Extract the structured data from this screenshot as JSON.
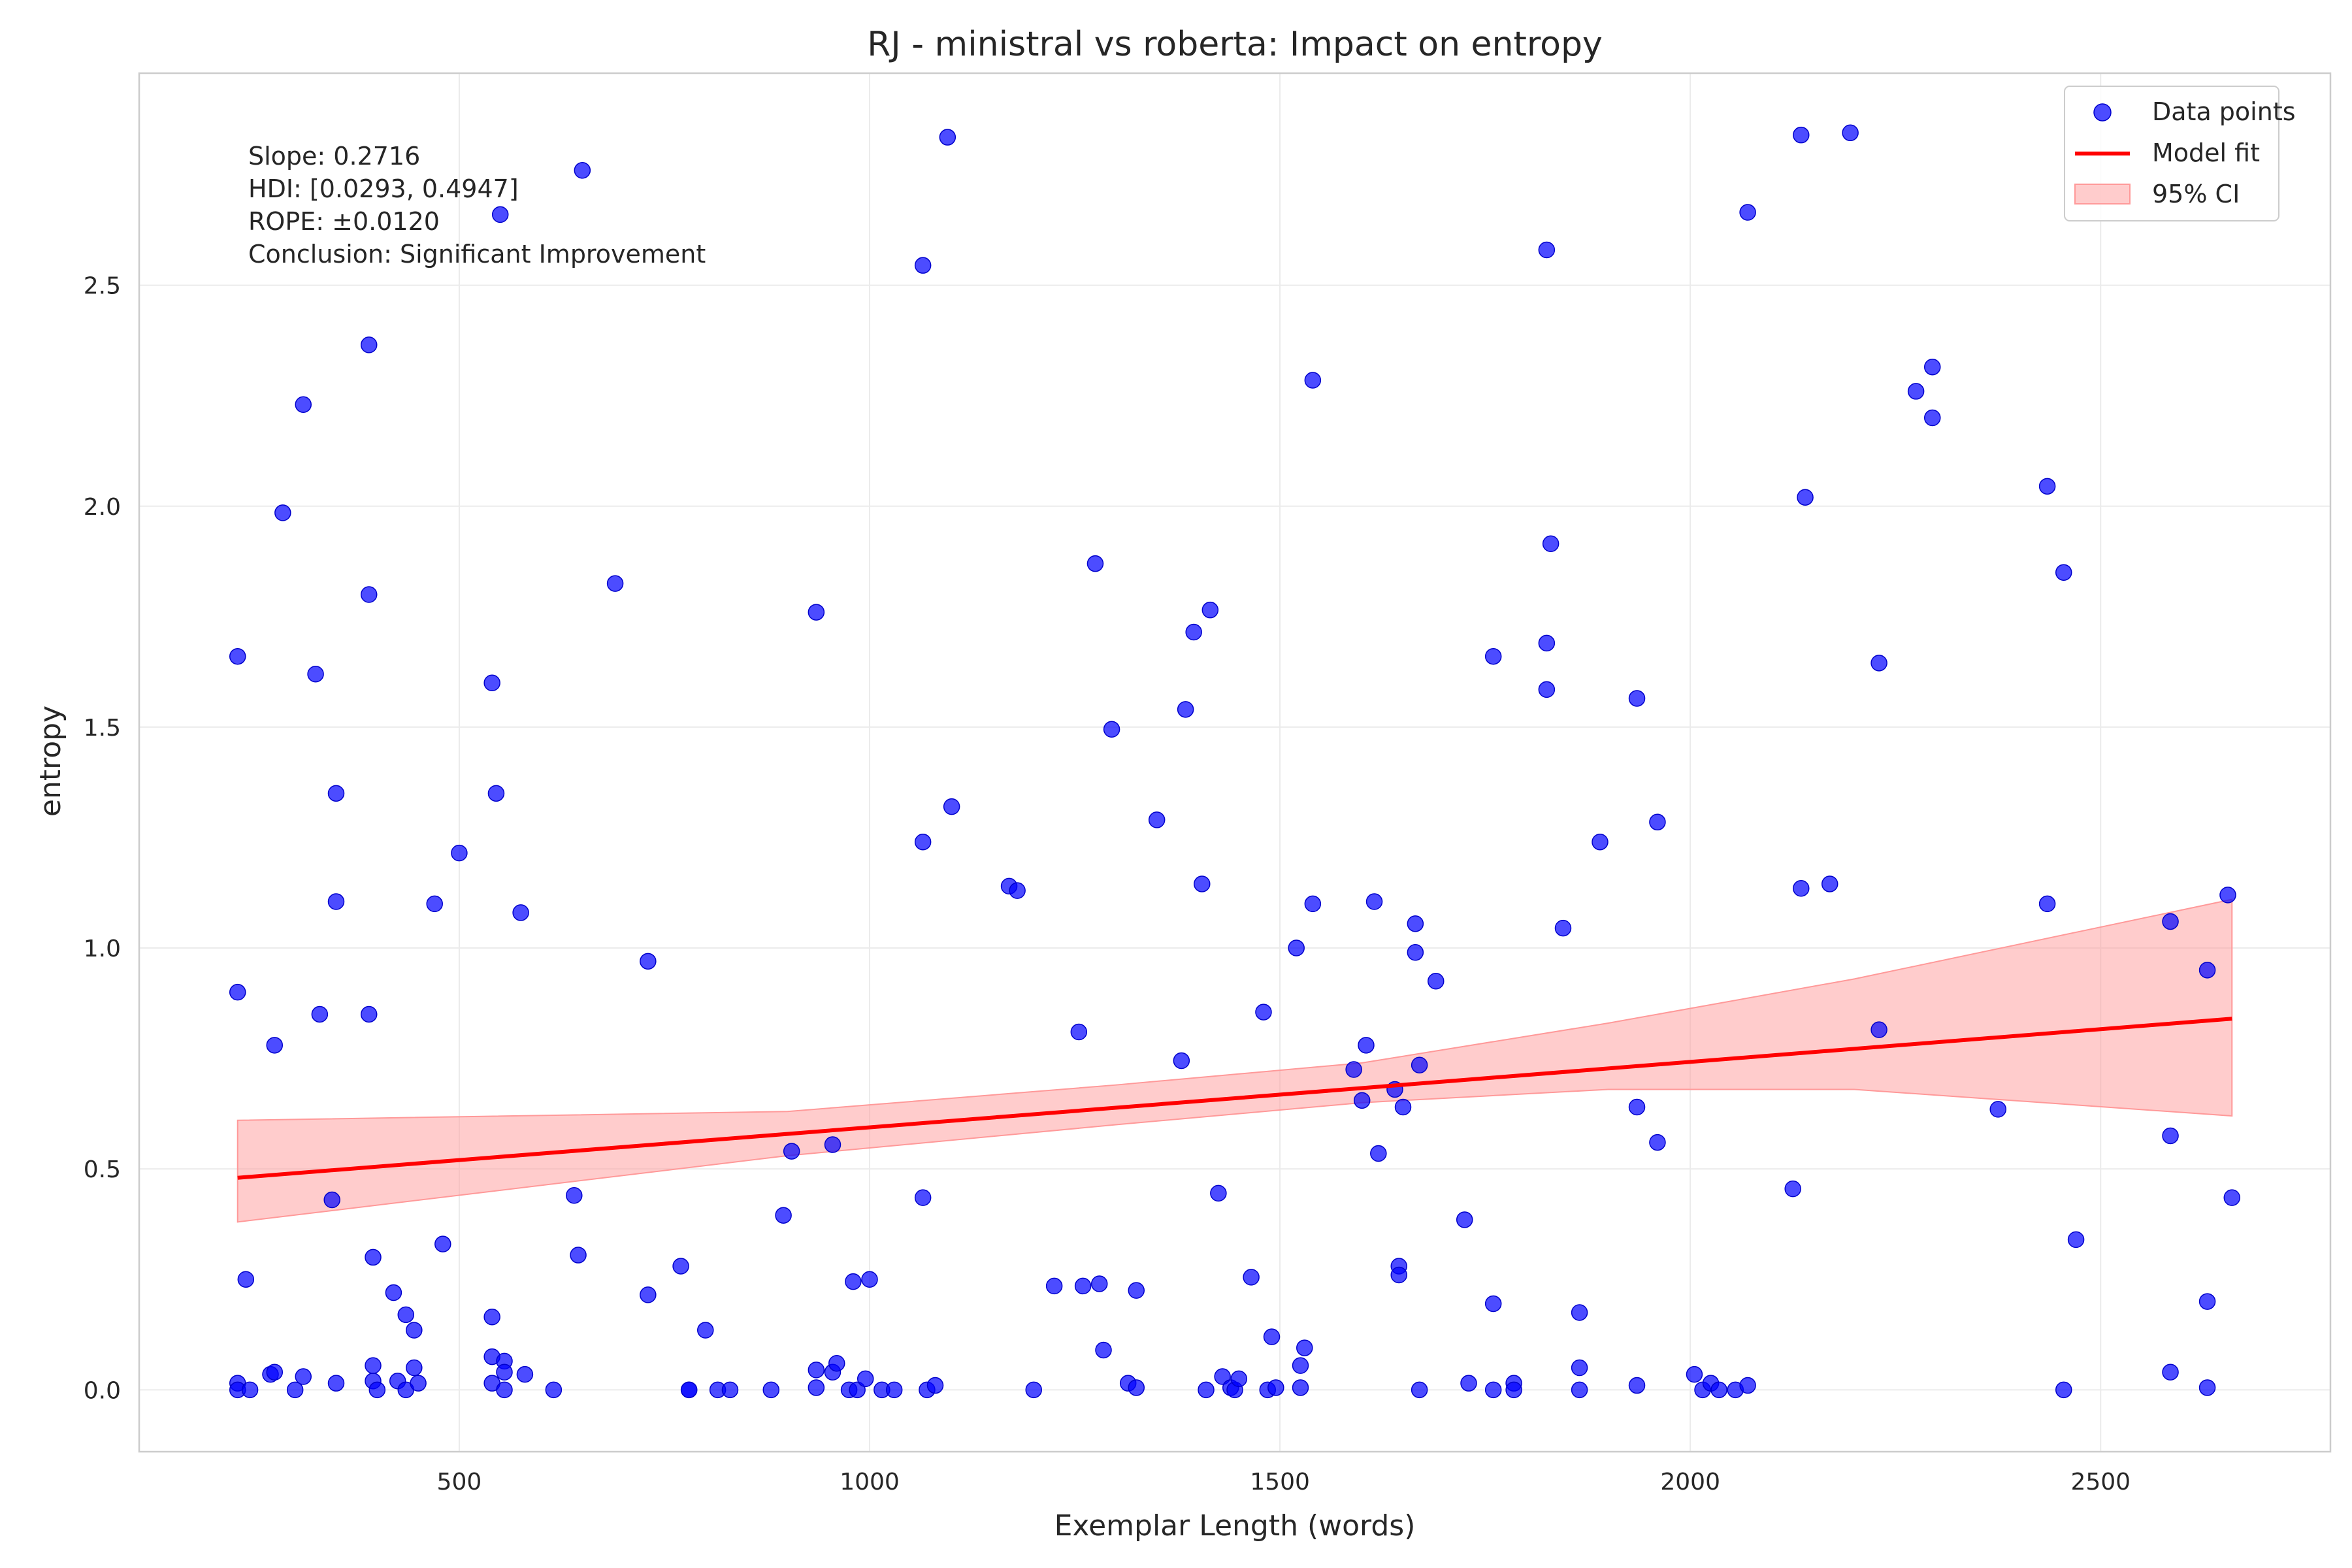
{
  "chart_data": {
    "type": "scatter",
    "title": "RJ - ministral vs roberta: Impact on entropy",
    "xlabel": "Exemplar Length (words)",
    "ylabel": "entropy",
    "xlim": [
      110,
      2780
    ],
    "ylim": [
      -0.14,
      2.98
    ],
    "xticks": [
      500,
      1000,
      1500,
      2000,
      2500
    ],
    "yticks": [
      0.0,
      0.5,
      1.0,
      1.5,
      2.0,
      2.5
    ],
    "grid": true,
    "legend_position": "top-right",
    "legend": {
      "points": "Data points",
      "fit": "Model fit",
      "ci": "95% CI"
    },
    "colors": {
      "points": "#0000ff",
      "fit": "#ff0000",
      "ci": "#ff9999"
    },
    "annotation": [
      "Slope: 0.2716",
      "HDI: [0.0293, 0.4947]",
      "ROPE: ±0.0120",
      "Conclusion: Significant Improvement"
    ],
    "fit_line": {
      "x": [
        230,
        2660
      ],
      "y": [
        0.48,
        0.84
      ]
    },
    "ci_band": {
      "x": [
        230,
        900,
        1300,
        1600,
        1900,
        2200,
        2660
      ],
      "lower": [
        0.38,
        0.53,
        0.6,
        0.65,
        0.68,
        0.68,
        0.62
      ],
      "upper": [
        0.61,
        0.63,
        0.69,
        0.74,
        0.83,
        0.93,
        1.11
      ]
    },
    "series": [
      {
        "name": "Data points",
        "points": [
          [
            230,
            0.9
          ],
          [
            230,
            1.66
          ],
          [
            230,
            0.015
          ],
          [
            230,
            0
          ],
          [
            240,
            0.25
          ],
          [
            245,
            0
          ],
          [
            270,
            0.035
          ],
          [
            275,
            0.04
          ],
          [
            275,
            0.78
          ],
          [
            285,
            1.985
          ],
          [
            300,
            0
          ],
          [
            310,
            2.23
          ],
          [
            310,
            0.03
          ],
          [
            325,
            1.62
          ],
          [
            330,
            0.85
          ],
          [
            345,
            0.43
          ],
          [
            350,
            1.35
          ],
          [
            350,
            1.105
          ],
          [
            350,
            0.015
          ],
          [
            390,
            2.365
          ],
          [
            390,
            1.8
          ],
          [
            390,
            0.85
          ],
          [
            395,
            0.02
          ],
          [
            395,
            0.055
          ],
          [
            395,
            0.3
          ],
          [
            400,
            0
          ],
          [
            420,
            0.22
          ],
          [
            425,
            0.02
          ],
          [
            435,
            0.17
          ],
          [
            435,
            0
          ],
          [
            445,
            0.135
          ],
          [
            445,
            0.05
          ],
          [
            450,
            0.015
          ],
          [
            470,
            1.1
          ],
          [
            480,
            0.33
          ],
          [
            500,
            1.215
          ],
          [
            540,
            1.6
          ],
          [
            540,
            0.165
          ],
          [
            540,
            0.075
          ],
          [
            540,
            0.015
          ],
          [
            545,
            1.35
          ],
          [
            550,
            2.66
          ],
          [
            555,
            0.065
          ],
          [
            555,
            0.04
          ],
          [
            555,
            0
          ],
          [
            575,
            1.08
          ],
          [
            580,
            0.035
          ],
          [
            615,
            0
          ],
          [
            640,
            0.44
          ],
          [
            645,
            0.305
          ],
          [
            650,
            2.76
          ],
          [
            690,
            1.825
          ],
          [
            730,
            0.97
          ],
          [
            730,
            0.215
          ],
          [
            770,
            0.28
          ],
          [
            780,
            0
          ],
          [
            780,
            0
          ],
          [
            800,
            0.135
          ],
          [
            815,
            0
          ],
          [
            830,
            0
          ],
          [
            880,
            0
          ],
          [
            895,
            0.395
          ],
          [
            905,
            0.54
          ],
          [
            935,
            1.76
          ],
          [
            935,
            0.045
          ],
          [
            935,
            0.005
          ],
          [
            955,
            0.555
          ],
          [
            955,
            0.04
          ],
          [
            960,
            0.06
          ],
          [
            975,
            0
          ],
          [
            980,
            0.245
          ],
          [
            985,
            0
          ],
          [
            995,
            0.025
          ],
          [
            1000,
            0.25
          ],
          [
            1015,
            0
          ],
          [
            1030,
            0
          ],
          [
            1065,
            2.545
          ],
          [
            1065,
            1.24
          ],
          [
            1065,
            0.435
          ],
          [
            1070,
            0
          ],
          [
            1080,
            0.01
          ],
          [
            1095,
            2.835
          ],
          [
            1100,
            1.32
          ],
          [
            1170,
            1.14
          ],
          [
            1180,
            1.13
          ],
          [
            1200,
            0
          ],
          [
            1225,
            0.235
          ],
          [
            1255,
            0.81
          ],
          [
            1260,
            0.235
          ],
          [
            1275,
            1.87
          ],
          [
            1280,
            0.24
          ],
          [
            1285,
            0.09
          ],
          [
            1295,
            1.495
          ],
          [
            1315,
            0.015
          ],
          [
            1325,
            0.225
          ],
          [
            1325,
            0.005
          ],
          [
            1350,
            1.29
          ],
          [
            1380,
            0.745
          ],
          [
            1385,
            1.54
          ],
          [
            1395,
            1.715
          ],
          [
            1405,
            1.145
          ],
          [
            1410,
            0
          ],
          [
            1415,
            1.765
          ],
          [
            1425,
            0.445
          ],
          [
            1430,
            0.03
          ],
          [
            1440,
            0.005
          ],
          [
            1445,
            0
          ],
          [
            1450,
            0.025
          ],
          [
            1465,
            0.255
          ],
          [
            1480,
            0.855
          ],
          [
            1485,
            0
          ],
          [
            1490,
            0.12
          ],
          [
            1495,
            0.005
          ],
          [
            1520,
            1.0
          ],
          [
            1525,
            0.055
          ],
          [
            1525,
            0.005
          ],
          [
            1530,
            0.095
          ],
          [
            1540,
            2.285
          ],
          [
            1540,
            1.1
          ],
          [
            1590,
            0.725
          ],
          [
            1600,
            0.655
          ],
          [
            1605,
            0.78
          ],
          [
            1615,
            1.105
          ],
          [
            1620,
            0.535
          ],
          [
            1640,
            0.68
          ],
          [
            1645,
            0.28
          ],
          [
            1645,
            0.26
          ],
          [
            1650,
            0.64
          ],
          [
            1665,
            1.055
          ],
          [
            1665,
            0.99
          ],
          [
            1670,
            0.735
          ],
          [
            1670,
            0
          ],
          [
            1690,
            0.925
          ],
          [
            1725,
            0.385
          ],
          [
            1730,
            0.015
          ],
          [
            1760,
            1.66
          ],
          [
            1760,
            0.195
          ],
          [
            1760,
            0
          ],
          [
            1785,
            0.015
          ],
          [
            1785,
            0
          ],
          [
            1825,
            2.58
          ],
          [
            1825,
            1.69
          ],
          [
            1825,
            1.585
          ],
          [
            1830,
            1.915
          ],
          [
            1845,
            1.045
          ],
          [
            1865,
            0.175
          ],
          [
            1865,
            0.05
          ],
          [
            1865,
            0
          ],
          [
            1890,
            1.24
          ],
          [
            1935,
            1.565
          ],
          [
            1935,
            0.64
          ],
          [
            1935,
            0.01
          ],
          [
            1960,
            1.285
          ],
          [
            1960,
            0.56
          ],
          [
            2005,
            0.035
          ],
          [
            2015,
            0
          ],
          [
            2025,
            0.015
          ],
          [
            2035,
            0
          ],
          [
            2055,
            0
          ],
          [
            2070,
            2.665
          ],
          [
            2070,
            0.01
          ],
          [
            2125,
            0.455
          ],
          [
            2135,
            2.84
          ],
          [
            2135,
            1.135
          ],
          [
            2140,
            2.02
          ],
          [
            2170,
            1.145
          ],
          [
            2195,
            2.845
          ],
          [
            2230,
            1.645
          ],
          [
            2230,
            0.815
          ],
          [
            2275,
            2.26
          ],
          [
            2295,
            2.315
          ],
          [
            2295,
            2.2
          ],
          [
            2375,
            0.635
          ],
          [
            2435,
            2.045
          ],
          [
            2435,
            1.1
          ],
          [
            2455,
            1.85
          ],
          [
            2455,
            0
          ],
          [
            2470,
            0.34
          ],
          [
            2585,
            1.06
          ],
          [
            2585,
            0.575
          ],
          [
            2585,
            0.04
          ],
          [
            2630,
            0.95
          ],
          [
            2630,
            0.2
          ],
          [
            2630,
            0.005
          ],
          [
            2655,
            1.12
          ],
          [
            2660,
            0.435
          ]
        ]
      }
    ]
  }
}
